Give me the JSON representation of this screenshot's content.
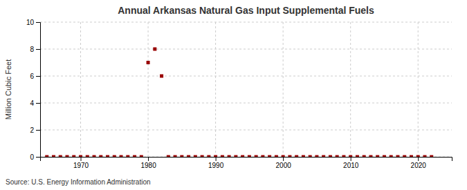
{
  "chart_data": {
    "type": "scatter",
    "title": "Annual Arkansas Natural Gas Input Supplemental Fuels",
    "ylabel": "Million Cubic Feet",
    "source": "Source: U.S. Energy Information Administration",
    "x": [
      1965,
      1966,
      1967,
      1968,
      1969,
      1970,
      1971,
      1972,
      1973,
      1974,
      1975,
      1976,
      1977,
      1978,
      1979,
      1980,
      1981,
      1982,
      1983,
      1984,
      1985,
      1986,
      1987,
      1988,
      1989,
      1990,
      1991,
      1992,
      1993,
      1994,
      1995,
      1996,
      1997,
      1998,
      1999,
      2000,
      2001,
      2002,
      2003,
      2004,
      2005,
      2006,
      2007,
      2008,
      2009,
      2010,
      2011,
      2012,
      2013,
      2014,
      2015,
      2016,
      2017,
      2018,
      2019,
      2020,
      2021,
      2022
    ],
    "values": [
      0,
      0,
      0,
      0,
      0,
      0,
      0,
      0,
      0,
      0,
      0,
      0,
      0,
      0,
      0,
      7,
      8,
      6,
      0,
      0,
      0,
      0,
      0,
      0,
      0,
      0,
      0,
      0,
      0,
      0,
      0,
      0,
      0,
      0,
      0,
      0,
      0,
      0,
      0,
      0,
      0,
      0,
      0,
      0,
      0,
      0,
      0,
      0,
      0,
      0,
      0,
      0,
      0,
      0,
      0,
      0,
      0,
      0
    ],
    "color": "#990000",
    "marker": "square",
    "xlim": [
      1964,
      2025
    ],
    "ylim": [
      0,
      10
    ],
    "xticks": [
      1970,
      1980,
      1990,
      2000,
      2010,
      2020
    ],
    "yticks": [
      0,
      2,
      4,
      6,
      8,
      10
    ],
    "grid": true
  }
}
